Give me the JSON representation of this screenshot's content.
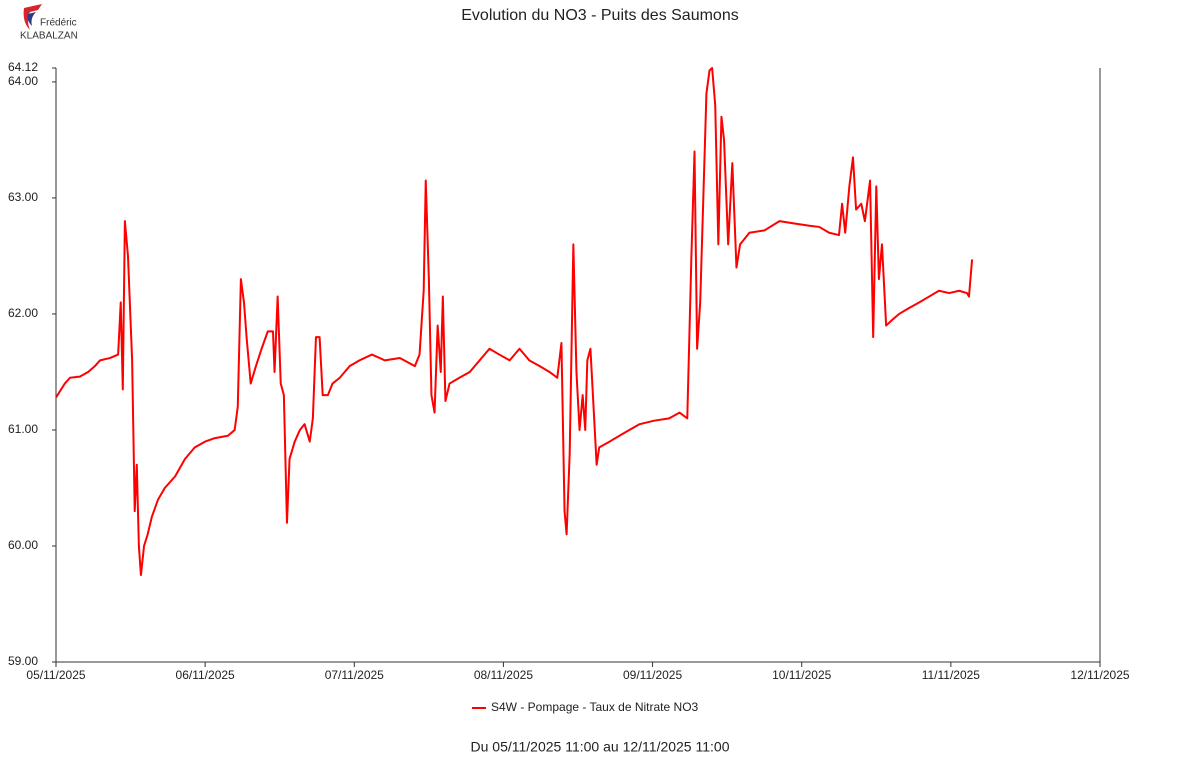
{
  "logo": {
    "line1": "Frédéric",
    "line2": "KLABALZAN"
  },
  "chart_data": {
    "type": "line",
    "title": "Evolution du NO3 - Puits des Saumons",
    "footer": "Du 05/11/2025 11:00 au 12/11/2025 11:00",
    "xlim": [
      "2025-11-05T11:00",
      "2025-11-12T11:00"
    ],
    "xticks": [
      {
        "value": "2025-11-05T11:00",
        "label": "05/11/2025"
      },
      {
        "value": "2025-11-06T11:00",
        "label": "06/11/2025"
      },
      {
        "value": "2025-11-07T11:00",
        "label": "07/11/2025"
      },
      {
        "value": "2025-11-08T11:00",
        "label": "08/11/2025"
      },
      {
        "value": "2025-11-09T11:00",
        "label": "09/11/2025"
      },
      {
        "value": "2025-11-10T11:00",
        "label": "10/11/2025"
      },
      {
        "value": "2025-11-11T11:00",
        "label": "11/11/2025"
      },
      {
        "value": "2025-11-12T11:00",
        "label": "12/11/2025"
      }
    ],
    "ylim": [
      59,
      64.12
    ],
    "yticks": [
      {
        "value": 59,
        "label": "59.00"
      },
      {
        "value": 60,
        "label": "60.00"
      },
      {
        "value": 61,
        "label": "61.00"
      },
      {
        "value": 62,
        "label": "62.00"
      },
      {
        "value": 63,
        "label": "63.00"
      },
      {
        "value": 64,
        "label": "64.00"
      },
      {
        "value": 64.12,
        "label": "64.12"
      }
    ],
    "legend": "bottom",
    "x": [
      "2025-11-05T11:00",
      "2025-11-05T12:25",
      "2025-11-05T13:15",
      "2025-11-05T14:50",
      "2025-11-05T16:10",
      "2025-11-05T17:15",
      "2025-11-05T18:05",
      "2025-11-05T19:40",
      "2025-11-05T21:00",
      "2025-11-05T21:25",
      "2025-11-05T21:45",
      "2025-11-05T22:05",
      "2025-11-05T22:35",
      "2025-11-05T23:15",
      "2025-11-05T23:40",
      "2025-11-06T00:00",
      "2025-11-06T00:20",
      "2025-11-06T00:40",
      "2025-11-06T01:10",
      "2025-11-06T01:45",
      "2025-11-06T02:25",
      "2025-11-06T03:25",
      "2025-11-06T04:30",
      "2025-11-06T06:10",
      "2025-11-06T07:45",
      "2025-11-06T09:20",
      "2025-11-06T11:00",
      "2025-11-06T12:35",
      "2025-11-06T14:40",
      "2025-11-06T15:45",
      "2025-11-06T16:15",
      "2025-11-06T16:45",
      "2025-11-06T17:15",
      "2025-11-06T17:40",
      "2025-11-06T18:20",
      "2025-11-06T19:10",
      "2025-11-06T20:05",
      "2025-11-06T21:05",
      "2025-11-06T21:55",
      "2025-11-06T22:10",
      "2025-11-06T22:40",
      "2025-11-06T23:10",
      "2025-11-06T23:40",
      "2025-11-07T00:10",
      "2025-11-07T00:35",
      "2025-11-07T01:25",
      "2025-11-07T02:15",
      "2025-11-07T03:00",
      "2025-11-07T03:50",
      "2025-11-07T04:20",
      "2025-11-07T04:50",
      "2025-11-07T05:25",
      "2025-11-07T05:55",
      "2025-11-07T06:45",
      "2025-11-07T07:30",
      "2025-11-07T08:40",
      "2025-11-07T10:15",
      "2025-11-07T11:50",
      "2025-11-07T13:50",
      "2025-11-07T15:55",
      "2025-11-07T18:20",
      "2025-11-07T20:45",
      "2025-11-07T21:30",
      "2025-11-07T22:10",
      "2025-11-07T22:30",
      "2025-11-07T23:00",
      "2025-11-07T23:25",
      "2025-11-07T23:55",
      "2025-11-08T00:25",
      "2025-11-08T00:55",
      "2025-11-08T01:15",
      "2025-11-08T01:40",
      "2025-11-08T02:20",
      "2025-11-08T03:55",
      "2025-11-08T05:35",
      "2025-11-08T07:10",
      "2025-11-08T08:45",
      "2025-11-08T10:20",
      "2025-11-08T12:00",
      "2025-11-08T13:35",
      "2025-11-08T15:10",
      "2025-11-08T16:50",
      "2025-11-08T18:25",
      "2025-11-08T19:40",
      "2025-11-08T20:20",
      "2025-11-08T20:50",
      "2025-11-08T21:10",
      "2025-11-08T21:40",
      "2025-11-08T22:15",
      "2025-11-08T22:45",
      "2025-11-08T23:15",
      "2025-11-08T23:45",
      "2025-11-09T00:10",
      "2025-11-09T00:30",
      "2025-11-09T01:00",
      "2025-11-09T01:30",
      "2025-11-09T02:00",
      "2025-11-09T02:25",
      "2025-11-09T04:05",
      "2025-11-09T05:40",
      "2025-11-09T07:15",
      "2025-11-09T08:55",
      "2025-11-09T11:15",
      "2025-11-09T13:40",
      "2025-11-09T15:20",
      "2025-11-09T16:35",
      "2025-11-09T17:15",
      "2025-11-09T17:45",
      "2025-11-09T18:10",
      "2025-11-09T18:40",
      "2025-11-09T19:10",
      "2025-11-09T19:40",
      "2025-11-09T20:10",
      "2025-11-09T20:35",
      "2025-11-09T21:05",
      "2025-11-09T21:35",
      "2025-11-09T22:05",
      "2025-11-09T22:30",
      "2025-11-09T23:10",
      "2025-11-09T23:50",
      "2025-11-10T00:30",
      "2025-11-10T01:05",
      "2025-11-10T02:35",
      "2025-11-10T05:00",
      "2025-11-10T07:25",
      "2025-11-10T09:50",
      "2025-11-10T12:15",
      "2025-11-10T13:50",
      "2025-11-10T15:25",
      "2025-11-10T17:00",
      "2025-11-10T17:30",
      "2025-11-10T18:00",
      "2025-11-10T18:40",
      "2025-11-10T19:15",
      "2025-11-10T19:45",
      "2025-11-10T20:35",
      "2025-11-10T21:10",
      "2025-11-10T22:00",
      "2025-11-10T22:30",
      "2025-11-10T23:00",
      "2025-11-10T23:25",
      "2025-11-10T23:55",
      "2025-11-11T00:35",
      "2025-11-11T01:35",
      "2025-11-11T02:40",
      "2025-11-11T04:15",
      "2025-11-11T05:55",
      "2025-11-11T07:30",
      "2025-11-11T09:05",
      "2025-11-11T10:45",
      "2025-11-11T12:20",
      "2025-11-11T13:35",
      "2025-11-11T13:55",
      "2025-11-11T14:25"
    ],
    "series": [
      {
        "name": "S4W - Pompage - Taux de Nitrate NO3",
        "color": "#ff0000",
        "values": [
          61.28,
          61.4,
          61.45,
          61.46,
          61.5,
          61.55,
          61.6,
          61.62,
          61.65,
          62.1,
          61.35,
          62.8,
          62.5,
          61.6,
          60.3,
          60.7,
          60.0,
          59.75,
          60.0,
          60.1,
          60.25,
          60.4,
          60.5,
          60.6,
          60.75,
          60.85,
          60.9,
          60.93,
          60.95,
          61.0,
          61.2,
          62.3,
          62.1,
          61.8,
          61.4,
          61.55,
          61.7,
          61.85,
          61.85,
          61.5,
          62.15,
          61.4,
          61.3,
          60.2,
          60.75,
          60.9,
          61.0,
          61.05,
          60.9,
          61.1,
          61.8,
          61.8,
          61.3,
          61.3,
          61.4,
          61.45,
          61.55,
          61.6,
          61.65,
          61.6,
          61.62,
          61.55,
          61.65,
          62.2,
          63.15,
          62.3,
          61.3,
          61.15,
          61.9,
          61.5,
          62.15,
          61.25,
          61.4,
          61.45,
          61.5,
          61.6,
          61.7,
          61.65,
          61.6,
          61.7,
          61.6,
          61.55,
          61.5,
          61.45,
          61.75,
          60.3,
          60.1,
          60.8,
          62.6,
          61.5,
          61.0,
          61.3,
          61.0,
          61.6,
          61.7,
          61.2,
          60.7,
          60.85,
          60.9,
          60.95,
          61.0,
          61.05,
          61.08,
          61.1,
          61.15,
          61.1,
          62.5,
          63.4,
          61.7,
          62.1,
          63.0,
          63.9,
          64.1,
          64.12,
          63.8,
          62.6,
          63.7,
          63.5,
          62.6,
          63.3,
          62.4,
          62.6,
          62.7,
          62.72,
          62.8,
          62.78,
          62.76,
          62.75,
          62.7,
          62.68,
          62.95,
          62.7,
          63.1,
          63.35,
          62.9,
          62.95,
          62.8,
          63.15,
          61.8,
          63.1,
          62.3,
          62.6,
          61.9,
          61.95,
          62.0,
          62.05,
          62.1,
          62.15,
          62.2,
          62.18,
          62.2,
          62.18,
          62.15,
          62.47
        ]
      }
    ]
  }
}
